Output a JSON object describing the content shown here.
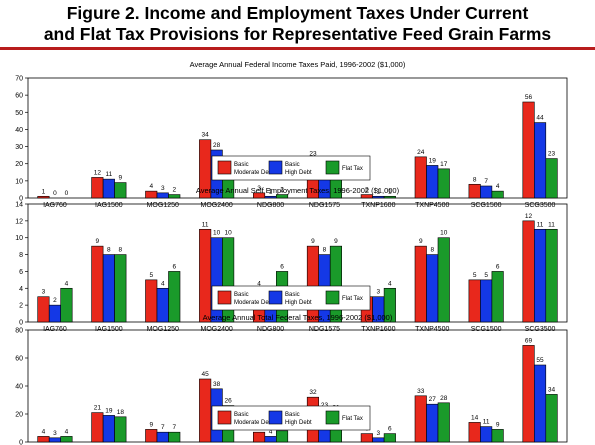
{
  "figure": {
    "title_line1": "Figure 2. Income and Employment Taxes Under Current",
    "title_line2": "and Flat Tax Provisions for Representative Feed Grain Farms"
  },
  "colors": {
    "title_rule": "#b81d1d",
    "basic_moderate": "#e8281c",
    "basic_high": "#1438e6",
    "flat": "#1a9a2a"
  },
  "chart_data": [
    {
      "type": "bar",
      "title": "Average Annual Federal Income Taxes Paid, 1996-2002 ($1,000)",
      "categories": [
        "IAG760",
        "IAG1500",
        "MOG1250",
        "MOG2400",
        "NDG800",
        "NDG1575",
        "TXNP1600",
        "TXNP4500",
        "SCG1500",
        "SCG3500"
      ],
      "ylim": [
        0,
        70
      ],
      "yticks": [
        0,
        10,
        20,
        30,
        40,
        50,
        60,
        70
      ],
      "grid": false,
      "legend": "bottom-right",
      "series": [
        {
          "name": "Basic Moderate Debt",
          "color": "#e8281c",
          "values": [
            1,
            12,
            4,
            34,
            3,
            23,
            2,
            24,
            8,
            56
          ]
        },
        {
          "name": "Basic High Debt",
          "color": "#1438e6",
          "values": [
            0,
            11,
            3,
            28,
            1,
            16,
            1,
            19,
            7,
            44
          ]
        },
        {
          "name": "Flat Tax",
          "color": "#1a9a2a",
          "values": [
            0,
            9,
            2,
            16,
            2,
            12,
            1,
            17,
            4,
            23
          ]
        }
      ]
    },
    {
      "type": "bar",
      "title": "Average Annual Self Employment Taxes, 1996-2002 ($1,000)",
      "categories": [
        "IAG760",
        "IAG1500",
        "MOG1250",
        "MOG2400",
        "NDG800",
        "NDG1575",
        "TXNP1600",
        "TXNP4500",
        "SCG1500",
        "SCG3500"
      ],
      "ylim": [
        0,
        14
      ],
      "yticks": [
        0,
        2,
        4,
        6,
        8,
        10,
        12,
        14
      ],
      "grid": false,
      "legend": "bottom-right",
      "series": [
        {
          "name": "Basic Moderate Debt",
          "color": "#e8281c",
          "values": [
            3,
            9,
            5,
            11,
            4,
            9,
            3,
            9,
            5,
            12
          ]
        },
        {
          "name": "Basic High Debt",
          "color": "#1438e6",
          "values": [
            2,
            8,
            4,
            10,
            3,
            8,
            3,
            8,
            5,
            11
          ]
        },
        {
          "name": "Flat Tax",
          "color": "#1a9a2a",
          "values": [
            4,
            8,
            6,
            10,
            6,
            9,
            4,
            10,
            6,
            11
          ]
        }
      ]
    },
    {
      "type": "bar",
      "title": "Average Annual Total Federal Taxes, 1996-2002 ($1,000)",
      "categories": [
        "IAG760",
        "IAG1500",
        "MOG1250",
        "MOG2400",
        "NDG800",
        "NDG1575",
        "TXNP1600",
        "TXNP4500",
        "SCG1500",
        "SCG3500"
      ],
      "ylim": [
        0,
        80
      ],
      "yticks": [
        0,
        20,
        40,
        60,
        80
      ],
      "grid": false,
      "legend": "bottom-right",
      "series": [
        {
          "name": "Basic Moderate Debt",
          "color": "#e8281c",
          "values": [
            4,
            21,
            9,
            45,
            7,
            32,
            6,
            33,
            14,
            69
          ]
        },
        {
          "name": "Basic High Debt",
          "color": "#1438e6",
          "values": [
            3,
            19,
            7,
            38,
            4,
            23,
            3,
            27,
            11,
            55
          ]
        },
        {
          "name": "Flat Tax",
          "color": "#1a9a2a",
          "values": [
            4,
            18,
            7,
            26,
            8,
            21,
            6,
            28,
            9,
            34
          ]
        }
      ]
    }
  ],
  "legend_labels": [
    {
      "line1": "Basic",
      "line2": "Moderate Debt"
    },
    {
      "line1": "Basic",
      "line2": "High Debt"
    },
    {
      "line1": "Flat Tax",
      "line2": ""
    }
  ]
}
